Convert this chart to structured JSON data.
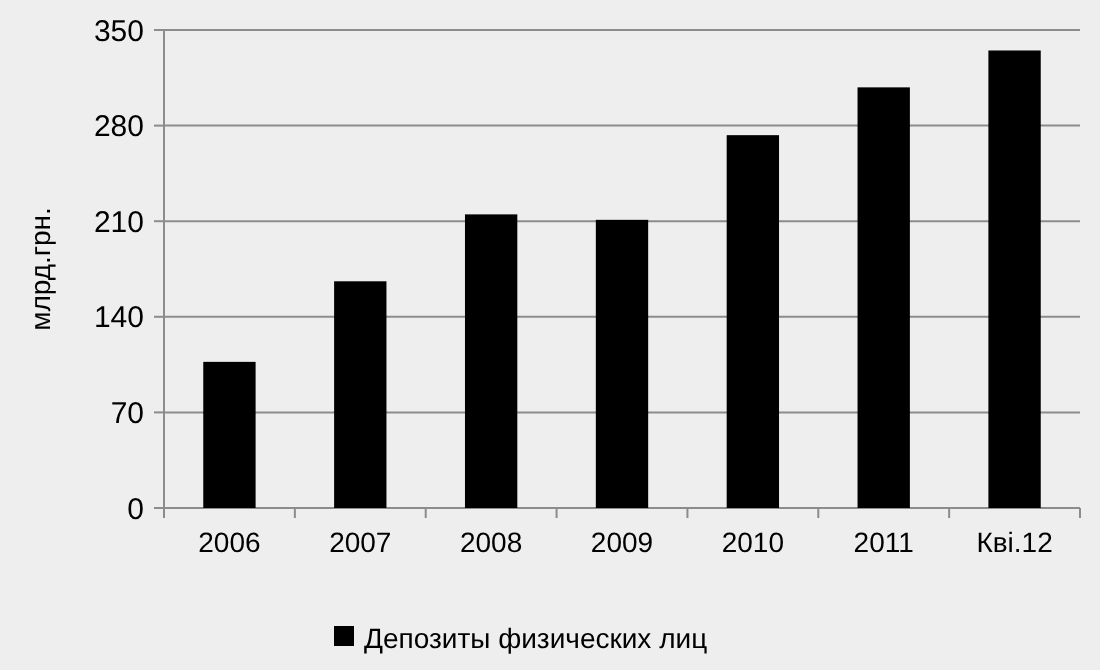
{
  "chart_data": {
    "type": "bar",
    "ylabel": "млрд.грн.",
    "categories": [
      "2006",
      "2007",
      "2008",
      "2009",
      "2010",
      "2011",
      "Кві.12"
    ],
    "series": [
      {
        "name": "Депозиты физических лиц",
        "color": "#000000",
        "values": [
          107,
          166,
          215,
          211,
          273,
          308,
          335
        ]
      }
    ],
    "ylim": [
      0,
      350
    ],
    "yticks": [
      0,
      70,
      140,
      210,
      280,
      350
    ],
    "grid": "y",
    "legend": "bottom"
  }
}
